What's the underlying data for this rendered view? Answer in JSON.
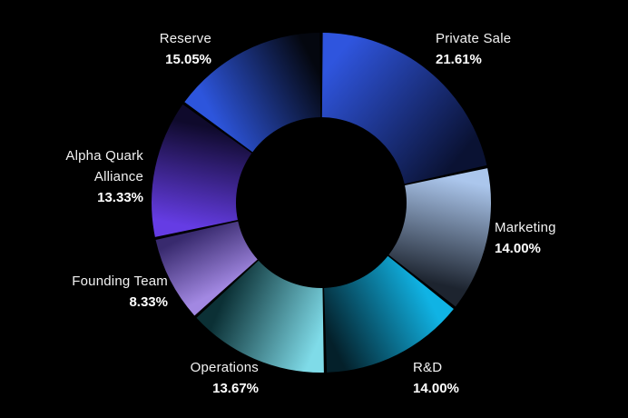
{
  "background_color": "#000000",
  "text_color": "#ffffff",
  "chart_data": {
    "type": "pie",
    "variant": "donut",
    "title": "",
    "legend": "none",
    "unit": "%",
    "start_angle_deg": 0,
    "direction": "clockwise",
    "slices": [
      {
        "label": "Private Sale",
        "value": 21.61,
        "pct_label": "21.61%",
        "color_bright": "#2f55de",
        "color_dark": "#0a1233"
      },
      {
        "label": "Marketing",
        "value": 14.0,
        "pct_label": "14.00%",
        "color_bright": "#abc6ec",
        "color_dark": "#1d242f"
      },
      {
        "label": "R&D",
        "value": 14.0,
        "pct_label": "14.00%",
        "color_bright": "#10b3e4",
        "color_dark": "#04202a"
      },
      {
        "label": "Operations",
        "value": 13.67,
        "pct_label": "13.67%",
        "color_bright": "#7fdbe8",
        "color_dark": "#0b3035"
      },
      {
        "label": "Founding Team",
        "value": 8.33,
        "pct_label": "8.33%",
        "color_bright": "#a288e2",
        "color_dark": "#382a6e"
      },
      {
        "label": "Alpha Quark Alliance",
        "value": 13.33,
        "pct_label": "13.33%",
        "color_bright": "#653ce4",
        "color_dark": "#0f0a2c"
      },
      {
        "label": "Reserve",
        "value": 15.05,
        "pct_label": "15.05%",
        "color_bright": "#2d55dc",
        "color_dark": "#04070f"
      }
    ]
  }
}
